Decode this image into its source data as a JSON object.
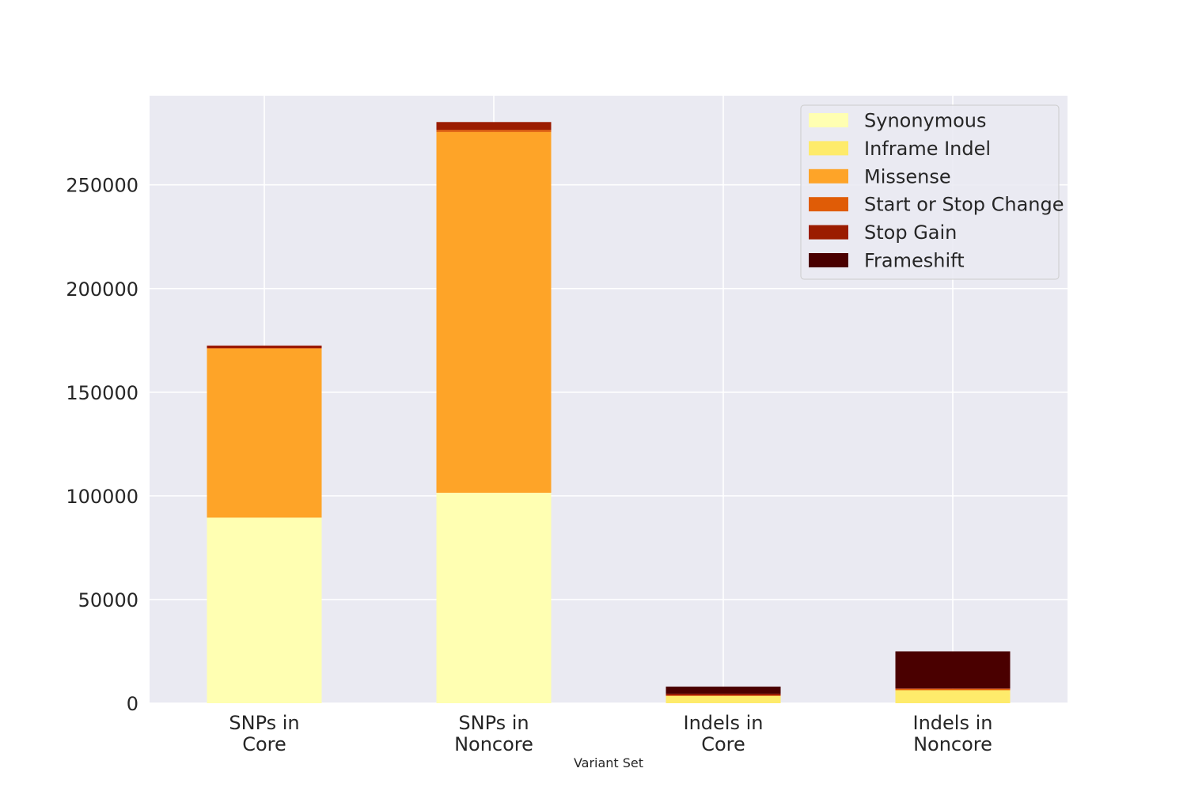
{
  "chart_data": {
    "type": "bar",
    "stacked": true,
    "categories": [
      [
        "SNPs in",
        "Core"
      ],
      [
        "SNPs in",
        "Noncore"
      ],
      [
        "Indels in",
        "Core"
      ],
      [
        "Indels in",
        "Noncore"
      ]
    ],
    "series": [
      {
        "name": "Synonymous",
        "color": "#ffffb2",
        "values": [
          89500,
          101500,
          0,
          0
        ]
      },
      {
        "name": "Inframe Indel",
        "color": "#feeb6b",
        "values": [
          0,
          0,
          3500,
          6300
        ]
      },
      {
        "name": "Missense",
        "color": "#fea428",
        "values": [
          81500,
          174000,
          0,
          0
        ]
      },
      {
        "name": "Start or Stop Change",
        "color": "#e05c06",
        "values": [
          300,
          1000,
          300,
          600
        ]
      },
      {
        "name": "Stop Gain",
        "color": "#9b1c00",
        "values": [
          1200,
          3800,
          800,
          300
        ]
      },
      {
        "name": "Frameshift",
        "color": "#4a0000",
        "values": [
          0,
          0,
          3400,
          17800
        ]
      }
    ],
    "xlabel": "Variant Set",
    "ylabel": "",
    "ylim": [
      0,
      293000
    ],
    "yticks": [
      0,
      50000,
      100000,
      150000,
      200000,
      250000
    ],
    "grid": true,
    "legend": "top-right"
  }
}
